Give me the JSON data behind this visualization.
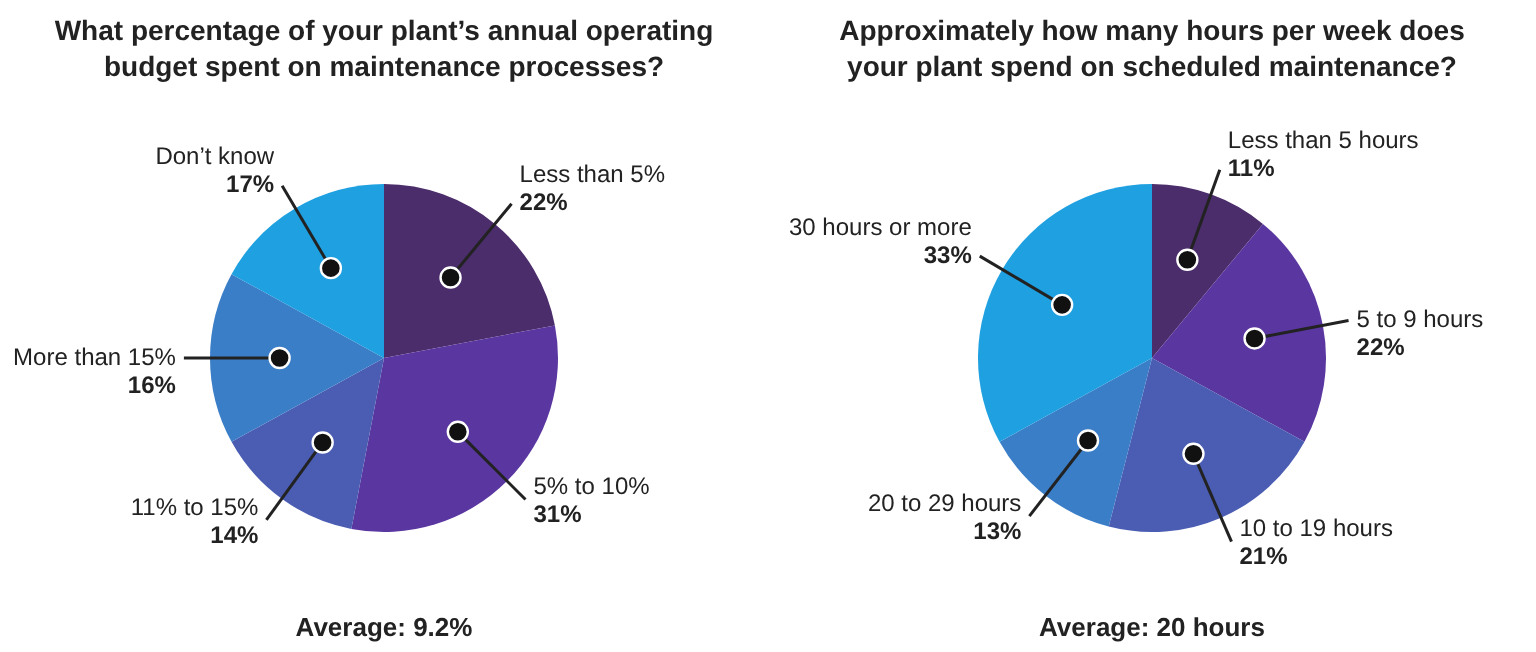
{
  "chart_data": [
    {
      "type": "pie",
      "title": "What percentage of your plant’s annual operating budget spent on maintenance processes?",
      "categories": [
        "Less than 5%",
        "5% to 10%",
        "11% to 15%",
        "More than 15%",
        "Don’t know"
      ],
      "values": [
        22,
        31,
        14,
        16,
        17
      ],
      "colors": [
        "#4b2d6b",
        "#5a36a0",
        "#4a5db3",
        "#3b7ec8",
        "#1fa0e0"
      ],
      "value_labels": [
        "22%",
        "31%",
        "14%",
        "16%",
        "17%"
      ],
      "legend": false,
      "annotations": [
        "Average: 9.2%"
      ]
    },
    {
      "type": "pie",
      "title": "Approximately how many hours per week does your plant spend on scheduled maintenance?",
      "categories": [
        "Less than 5 hours",
        "5 to 9 hours",
        "10 to 19 hours",
        "20 to 29 hours",
        "30 hours or more"
      ],
      "values": [
        11,
        22,
        21,
        13,
        33
      ],
      "colors": [
        "#4b2d6b",
        "#5a36a0",
        "#4a5db3",
        "#3b7ec8",
        "#1fa0e0"
      ],
      "value_labels": [
        "11%",
        "22%",
        "21%",
        "13%",
        "33%"
      ],
      "legend": false,
      "annotations": [
        "Average: 20 hours"
      ]
    }
  ]
}
